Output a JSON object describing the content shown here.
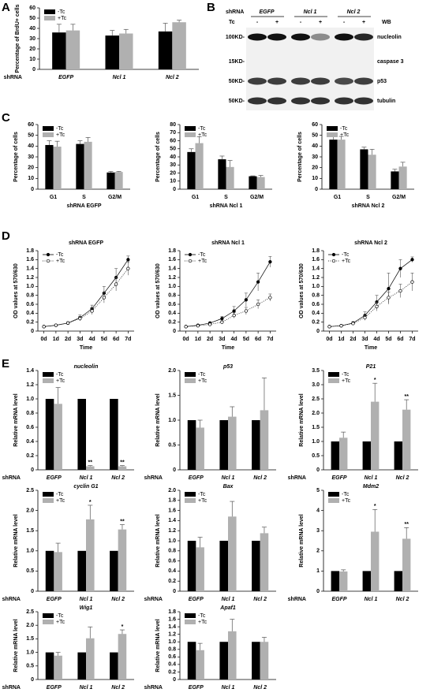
{
  "panel_labels": [
    "A",
    "B",
    "C",
    "D",
    "E"
  ],
  "blot": {
    "header": "shRNA",
    "groups": [
      "EGFP",
      "Ncl 1",
      "Ncl 2"
    ],
    "treatment": "Tc",
    "lanes": [
      "-",
      "+",
      "-",
      "+",
      "-",
      "+"
    ],
    "method": "WB",
    "rows": [
      {
        "size": "100KD-",
        "protein": "nucleolin"
      },
      {
        "size": "15KD-",
        "protein": "caspase 3"
      },
      {
        "size": "50KD-",
        "protein": "p53"
      },
      {
        "size": "50KD-",
        "protein": "tubulin"
      }
    ]
  },
  "chart_data": [
    {
      "type": "bar",
      "y_label": "Percentage of BrdU+ cells",
      "x_prefix": "shRNA",
      "categories": [
        "EGFP",
        "Ncl 1",
        "Ncl 2"
      ],
      "ylim": [
        0,
        60
      ],
      "yticks": [
        0,
        10,
        20,
        30,
        40,
        50,
        60
      ],
      "legend": "upper left",
      "series": [
        {
          "name": "-Tc",
          "color": "#000000",
          "values": [
            36,
            33,
            37
          ],
          "errors": [
            8,
            5,
            8
          ]
        },
        {
          "name": "+Tc",
          "color": "#b0b0b0",
          "values": [
            38,
            35,
            46
          ],
          "errors": [
            6,
            4,
            2
          ]
        }
      ]
    },
    {
      "type": "bar",
      "y_label": "Percentage of cells",
      "x_label": "shRNA EGFP",
      "categories": [
        "G1",
        "S",
        "G2/M"
      ],
      "ylim": [
        0,
        60
      ],
      "yticks": [
        0,
        10,
        20,
        30,
        40,
        50,
        60
      ],
      "legend": "upper left",
      "series": [
        {
          "name": "-Tc",
          "color": "#000000",
          "values": [
            41,
            42,
            15.5
          ],
          "errors": [
            4,
            3,
            1
          ]
        },
        {
          "name": "+Tc",
          "color": "#b0b0b0",
          "values": [
            39.5,
            44,
            16
          ],
          "errors": [
            5,
            4,
            0.5
          ]
        }
      ]
    },
    {
      "type": "bar",
      "y_label": "Percentage of cells",
      "x_label": "shRNA Ncl 1",
      "categories": [
        "G1",
        "S",
        "G2/M"
      ],
      "ylim": [
        0,
        80
      ],
      "yticks": [
        0,
        10,
        20,
        30,
        40,
        50,
        60,
        70,
        80
      ],
      "legend": "upper left",
      "series": [
        {
          "name": "-Tc",
          "color": "#000000",
          "values": [
            46,
            37,
            16
          ],
          "errors": [
            4,
            4,
            0.5
          ]
        },
        {
          "name": "+Tc",
          "color": "#b0b0b0",
          "values": [
            57,
            27.5,
            15
          ],
          "errors": [
            8,
            8,
            2
          ]
        }
      ]
    },
    {
      "type": "bar",
      "y_label": "Percentage of cells",
      "x_label": "shRNA Ncl 2",
      "categories": [
        "G1",
        "S",
        "G2/M"
      ],
      "ylim": [
        0,
        60
      ],
      "yticks": [
        0,
        10,
        20,
        30,
        40,
        50,
        60
      ],
      "legend": "upper left",
      "series": [
        {
          "name": "-Tc",
          "color": "#000000",
          "values": [
            46,
            37,
            16.5
          ],
          "errors": [
            3,
            2,
            2
          ]
        },
        {
          "name": "+Tc",
          "color": "#b0b0b0",
          "values": [
            46,
            32,
            21
          ],
          "errors": [
            3,
            5,
            4
          ]
        }
      ]
    },
    {
      "type": "line",
      "title": "shRNA EGFP",
      "y_label": "OD values at 570/630",
      "x_label": "Time",
      "categories": [
        "0d",
        "1d",
        "2d",
        "3d",
        "4d",
        "5d",
        "6d",
        "7d"
      ],
      "ylim": [
        0,
        1.8
      ],
      "yticks": [
        0,
        0.2,
        0.4,
        0.6,
        0.8,
        {
          "value": 1,
          "label": "1.0"
        },
        1.2,
        1.4,
        1.6,
        1.8
      ],
      "legend": "upper left",
      "series": [
        {
          "name": "-Tc",
          "color": "#000000",
          "line_style": "solid",
          "marker": "filled",
          "values": [
            0.1,
            0.13,
            0.18,
            0.3,
            0.5,
            0.85,
            1.2,
            1.6
          ],
          "errors": [
            0.01,
            0.01,
            0.02,
            0.06,
            0.08,
            0.15,
            0.2,
            0.08
          ]
        },
        {
          "name": "+Tc",
          "color": "#000000",
          "line_style": "dotted",
          "marker": "open",
          "values": [
            0.1,
            0.13,
            0.18,
            0.28,
            0.45,
            0.75,
            1.05,
            1.4
          ],
          "errors": [
            0.01,
            0.01,
            0.02,
            0.05,
            0.08,
            0.12,
            0.15,
            0.15
          ]
        }
      ]
    },
    {
      "type": "line",
      "title": "shRNA Ncl 1",
      "y_label": "OD values at 570/630",
      "x_label": "Time",
      "categories": [
        "0d",
        "1d",
        "2d",
        "3d",
        "4d",
        "5d",
        "6d",
        "7d"
      ],
      "ylim": [
        0,
        1.8
      ],
      "yticks": [
        0,
        0.2,
        0.4,
        0.6,
        0.8,
        {
          "value": 1,
          "label": "1.0"
        },
        1.2,
        1.4,
        1.6,
        1.8
      ],
      "legend": "upper left",
      "series": [
        {
          "name": "-Tc",
          "color": "#000000",
          "line_style": "solid",
          "marker": "filled",
          "values": [
            0.1,
            0.13,
            0.18,
            0.28,
            0.45,
            0.7,
            1.1,
            1.55
          ],
          "errors": [
            0.01,
            0.01,
            0.02,
            0.05,
            0.1,
            0.15,
            0.2,
            0.12
          ]
        },
        {
          "name": "+Tc",
          "color": "#000000",
          "line_style": "dotted",
          "marker": "open",
          "values": [
            0.1,
            0.12,
            0.15,
            0.2,
            0.35,
            0.45,
            0.6,
            0.75
          ],
          "errors": [
            0.01,
            0.01,
            0.02,
            0.03,
            0.06,
            0.08,
            0.1,
            0.08
          ]
        }
      ]
    },
    {
      "type": "line",
      "title": "shRNA Ncl 2",
      "y_label": "OD values at 570/630",
      "x_label": "Time",
      "categories": [
        "0d",
        "1d",
        "2d",
        "3d",
        "4d",
        "5d",
        "6d",
        "7d"
      ],
      "ylim": [
        0,
        1.8
      ],
      "yticks": [
        0,
        0.2,
        0.4,
        0.6,
        0.8,
        {
          "value": 1,
          "label": "1.0"
        },
        1.2,
        1.4,
        1.6,
        1.8
      ],
      "legend": "upper left",
      "series": [
        {
          "name": "-Tc",
          "color": "#000000",
          "line_style": "solid",
          "marker": "filled",
          "values": [
            0.1,
            0.12,
            0.18,
            0.35,
            0.65,
            0.95,
            1.4,
            1.6
          ],
          "errors": [
            0.01,
            0.01,
            0.03,
            0.08,
            0.15,
            0.35,
            0.2,
            0.06
          ]
        },
        {
          "name": "+Tc",
          "color": "#000000",
          "line_style": "dotted",
          "marker": "open",
          "values": [
            0.1,
            0.12,
            0.17,
            0.3,
            0.55,
            0.75,
            0.9,
            1.1
          ],
          "errors": [
            0.01,
            0.01,
            0.02,
            0.06,
            0.1,
            0.12,
            0.15,
            0.2
          ]
        }
      ]
    },
    {
      "type": "bar",
      "title": "nucleolin",
      "y_label": "Relative mRNA level",
      "x_prefix": "shRNA",
      "categories": [
        "EGFP",
        "Ncl 1",
        "Ncl 2"
      ],
      "ylim": [
        0,
        1.4
      ],
      "yticks": [
        0,
        0.2,
        0.4,
        0.6,
        0.8,
        {
          "value": 1,
          "label": "1.0"
        },
        1.2,
        1.4
      ],
      "legend": "upper left",
      "series": [
        {
          "name": "-Tc",
          "color": "#000000",
          "values": [
            1,
            1,
            1
          ]
        },
        {
          "name": "+Tc",
          "color": "#b0b0b0",
          "values": [
            0.93,
            0.05,
            0.05
          ],
          "errors": [
            0.23,
            0.01,
            0.01
          ],
          "significance": [
            null,
            "**",
            "**"
          ]
        }
      ]
    },
    {
      "type": "bar",
      "title": "p53",
      "y_label": "Relative mRNA level",
      "x_prefix": "shRNA",
      "categories": [
        "EGFP",
        "Ncl 1",
        "Ncl 2"
      ],
      "ylim": [
        0,
        2
      ],
      "yticks": [
        0,
        0.5,
        {
          "value": 1,
          "label": "1.0"
        },
        1.5,
        {
          "value": 2,
          "label": "2.0"
        }
      ],
      "legend": "upper left",
      "series": [
        {
          "name": "-Tc",
          "color": "#000000",
          "values": [
            1,
            1,
            1
          ]
        },
        {
          "name": "+Tc",
          "color": "#b0b0b0",
          "values": [
            0.85,
            1.07,
            1.2
          ],
          "errors": [
            0.15,
            0.2,
            0.65
          ]
        }
      ]
    },
    {
      "type": "bar",
      "title": "P21",
      "y_label": "Relative mRNA level",
      "x_prefix": "shRNA",
      "categories": [
        "EGFP",
        "Ncl 1",
        "Ncl 2"
      ],
      "ylim": [
        0,
        3.5
      ],
      "yticks": [
        0,
        0.5,
        {
          "value": 1,
          "label": "1.0"
        },
        1.5,
        {
          "value": 2,
          "label": "2.0"
        },
        2.5,
        {
          "value": 3,
          "label": "3.0"
        },
        3.5
      ],
      "legend": "upper left",
      "series": [
        {
          "name": "-Tc",
          "color": "#000000",
          "values": [
            1,
            1,
            1
          ]
        },
        {
          "name": "+Tc",
          "color": "#b0b0b0",
          "values": [
            1.13,
            2.4,
            2.12
          ],
          "errors": [
            0.2,
            0.65,
            0.35
          ],
          "significance": [
            null,
            "*",
            "**"
          ]
        }
      ]
    },
    {
      "type": "bar",
      "title": "cyclin G1",
      "y_label": "Relative mRNA level",
      "x_prefix": "shRNA",
      "categories": [
        "EGFP",
        "Ncl 1",
        "Ncl 2"
      ],
      "ylim": [
        0,
        2.5
      ],
      "yticks": [
        0,
        0.5,
        {
          "value": 1,
          "label": "1.0"
        },
        1.5,
        {
          "value": 2,
          "label": "2.0"
        },
        2.5
      ],
      "legend": "upper left",
      "series": [
        {
          "name": "-Tc",
          "color": "#000000",
          "values": [
            1,
            1,
            1
          ]
        },
        {
          "name": "+Tc",
          "color": "#b0b0b0",
          "values": [
            0.97,
            1.78,
            1.53
          ],
          "errors": [
            0.22,
            0.35,
            0.12
          ],
          "significance": [
            null,
            "*",
            "**"
          ]
        }
      ]
    },
    {
      "type": "bar",
      "title": "Bax",
      "y_label": "Relative mRNA level",
      "x_prefix": "shRNA",
      "categories": [
        "EGFP",
        "Ncl 1",
        "Ncl 2"
      ],
      "ylim": [
        0,
        2
      ],
      "yticks": [
        0,
        0.2,
        0.4,
        0.6,
        0.8,
        {
          "value": 1,
          "label": "1.0"
        },
        1.2,
        1.4,
        1.6,
        1.8,
        {
          "value": 2,
          "label": "2.0"
        }
      ],
      "legend": "upper left",
      "series": [
        {
          "name": "-Tc",
          "color": "#000000",
          "values": [
            1,
            1,
            1
          ]
        },
        {
          "name": "+Tc",
          "color": "#b0b0b0",
          "values": [
            0.87,
            1.48,
            1.15
          ],
          "errors": [
            0.2,
            0.3,
            0.12
          ]
        }
      ]
    },
    {
      "type": "bar",
      "title": "Mdm2",
      "y_label": "Relative mRNA level",
      "x_prefix": "shRNA",
      "categories": [
        "EGFP",
        "Ncl 1",
        "Ncl 2"
      ],
      "ylim": [
        0,
        5
      ],
      "yticks": [
        0,
        1,
        2,
        3,
        4,
        5
      ],
      "legend": "upper left",
      "series": [
        {
          "name": "-Tc",
          "color": "#000000",
          "values": [
            1,
            1,
            1
          ]
        },
        {
          "name": "+Tc",
          "color": "#b0b0b0",
          "values": [
            0.98,
            2.95,
            2.6
          ],
          "errors": [
            0.08,
            1.1,
            0.55
          ],
          "significance": [
            null,
            "*",
            "**"
          ]
        }
      ]
    },
    {
      "type": "bar",
      "title": "Wig1",
      "y_label": "Relative mRNA level",
      "x_prefix": "shRNA",
      "categories": [
        "EGFP",
        "Ncl 1",
        "Ncl 2"
      ],
      "ylim": [
        0,
        2.5
      ],
      "yticks": [
        0,
        0.5,
        {
          "value": 1,
          "label": "1.0"
        },
        1.5,
        {
          "value": 2,
          "label": "2.0"
        },
        2.5
      ],
      "legend": "upper left",
      "series": [
        {
          "name": "-Tc",
          "color": "#000000",
          "values": [
            1,
            1,
            1
          ]
        },
        {
          "name": "+Tc",
          "color": "#b0b0b0",
          "values": [
            0.88,
            1.52,
            1.68
          ],
          "errors": [
            0.12,
            0.42,
            0.15
          ],
          "significance": [
            null,
            null,
            "*"
          ]
        }
      ]
    },
    {
      "type": "bar",
      "title": "Apaf1",
      "y_label": "Relative mRNA level",
      "x_prefix": "shRNA",
      "categories": [
        "EGFP",
        "Ncl 1",
        "Ncl 2"
      ],
      "ylim": [
        0,
        1.8
      ],
      "yticks": [
        0,
        0.2,
        0.4,
        0.6,
        0.8,
        {
          "value": 1,
          "label": "1.0"
        },
        1.2,
        1.4,
        1.6,
        1.8
      ],
      "legend": "upper left",
      "series": [
        {
          "name": "-Tc",
          "color": "#000000",
          "values": [
            1,
            1,
            1
          ]
        },
        {
          "name": "+Tc",
          "color": "#b0b0b0",
          "values": [
            0.78,
            1.28,
            1.0
          ],
          "errors": [
            0.18,
            0.32,
            0.12
          ]
        }
      ]
    }
  ]
}
